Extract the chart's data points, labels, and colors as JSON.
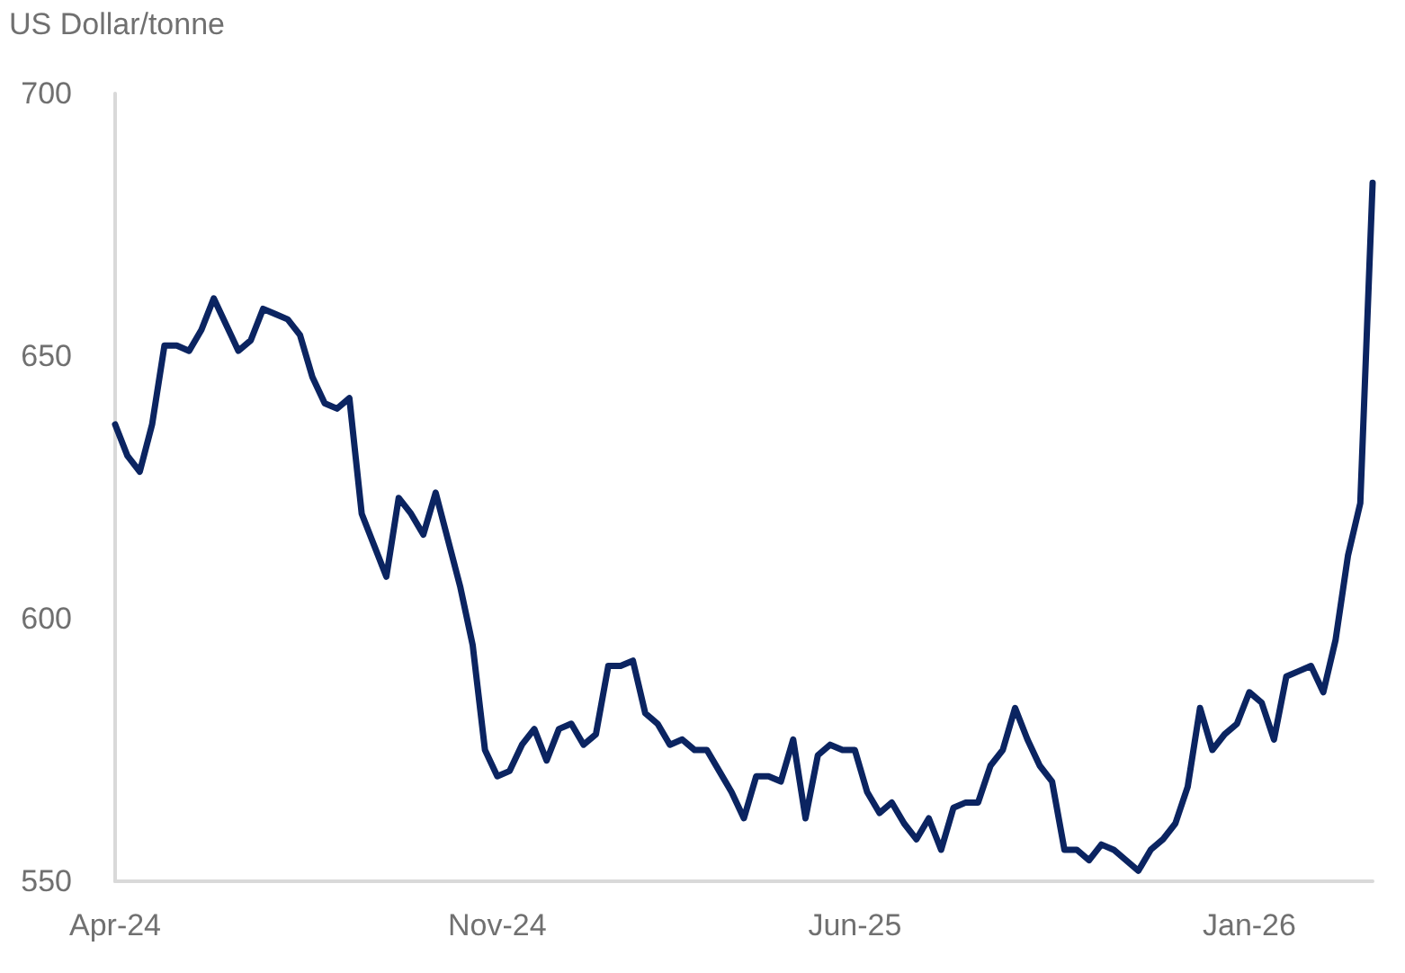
{
  "chart_data": {
    "type": "line",
    "ylabel": "US Dollar/tonne",
    "categories": [
      "Apr-24",
      null,
      null,
      null,
      null,
      null,
      null,
      null,
      null,
      null,
      null,
      null,
      null,
      null,
      null,
      null,
      null,
      null,
      null,
      null,
      null,
      null,
      null,
      null,
      null,
      null,
      null,
      null,
      null,
      null,
      null,
      "Nov-24",
      null,
      null,
      null,
      null,
      null,
      null,
      null,
      null,
      null,
      null,
      null,
      null,
      null,
      null,
      null,
      null,
      null,
      null,
      null,
      null,
      null,
      null,
      null,
      null,
      null,
      null,
      null,
      null,
      "Jun-25",
      null,
      null,
      null,
      null,
      null,
      null,
      null,
      null,
      null,
      null,
      null,
      null,
      null,
      null,
      null,
      null,
      null,
      null,
      null,
      null,
      null,
      null,
      null,
      null,
      null,
      null,
      null,
      null,
      null,
      null,
      null,
      "Jan-26",
      null,
      null,
      null,
      null,
      null,
      null,
      null,
      null,
      null,
      null
    ],
    "series": [
      {
        "color": "#0b2461",
        "values": [
          637,
          631,
          628,
          637,
          652,
          652,
          651,
          655,
          661,
          656,
          651,
          653,
          659,
          658,
          657,
          654,
          646,
          641,
          640,
          642,
          620,
          614,
          608,
          623,
          620,
          616,
          624,
          615,
          606,
          595,
          575,
          570,
          571,
          576,
          579,
          573,
          579,
          580,
          576,
          578,
          591,
          591,
          592,
          582,
          580,
          576,
          577,
          575,
          575,
          571,
          567,
          562,
          570,
          570,
          569,
          577,
          562,
          574,
          576,
          575,
          575,
          567,
          563,
          565,
          561,
          558,
          562,
          556,
          564,
          565,
          565,
          572,
          575,
          583,
          577,
          572,
          569,
          556,
          556,
          554,
          557,
          556,
          554,
          552,
          556,
          558,
          561,
          568,
          583,
          575,
          578,
          580,
          586,
          584,
          577,
          589,
          590,
          591,
          586,
          596,
          612,
          622,
          683
        ]
      }
    ],
    "ylim": [
      550,
      700
    ],
    "yticks": [
      550,
      600,
      650,
      700
    ],
    "grid": false,
    "marker": "none",
    "line_style": "solid"
  }
}
